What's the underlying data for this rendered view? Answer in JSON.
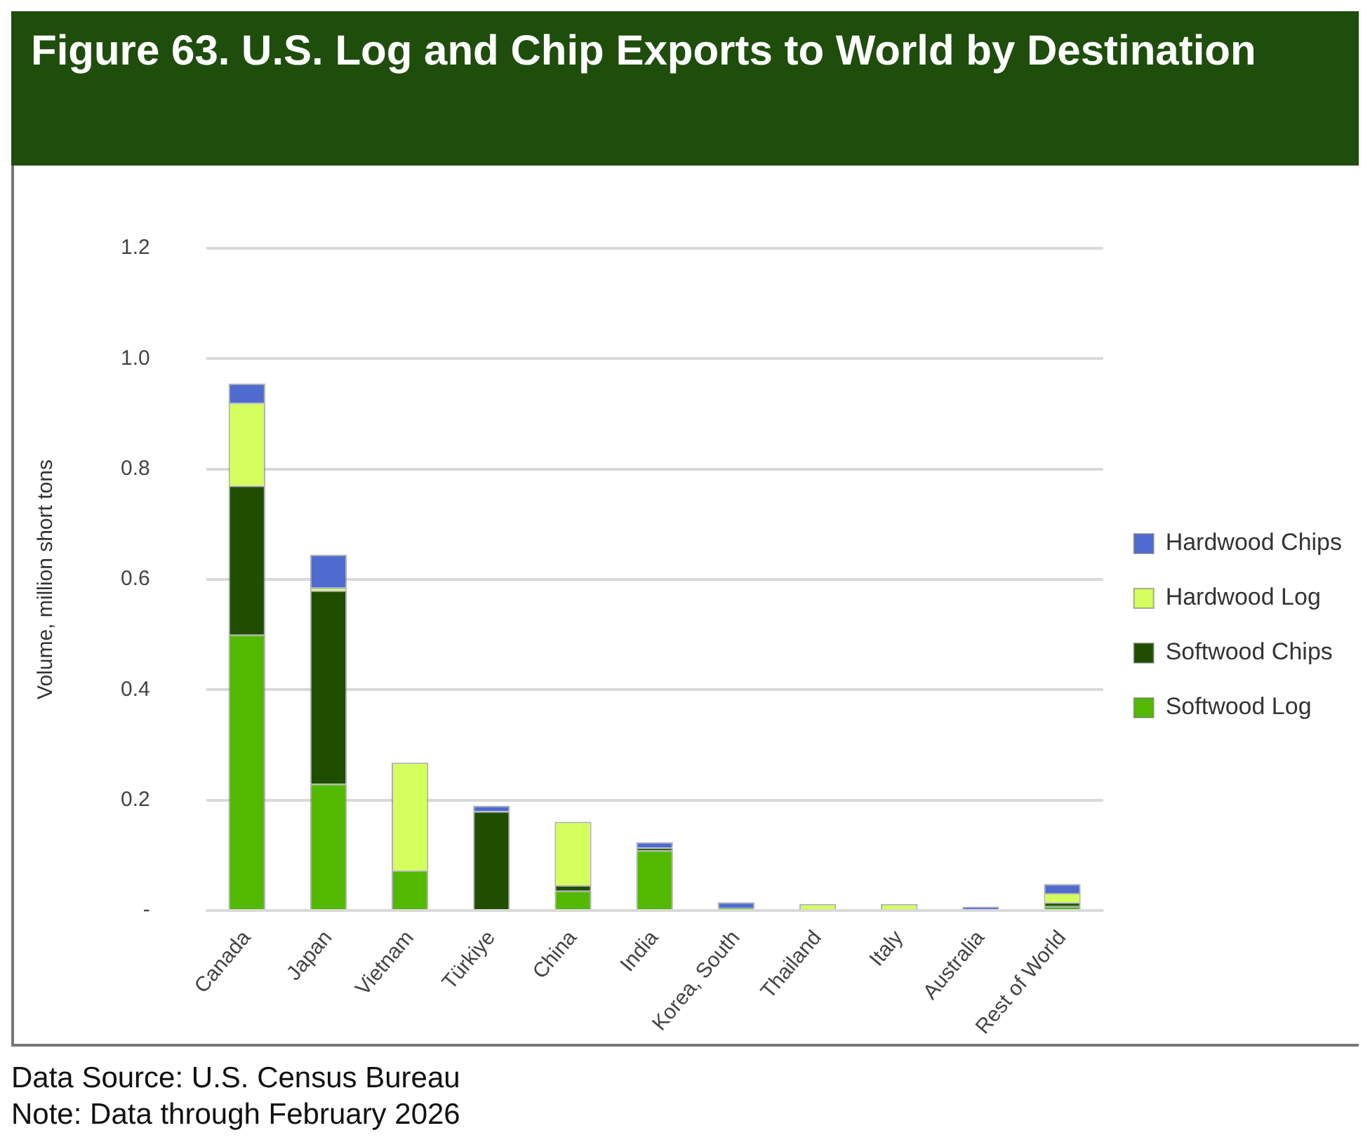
{
  "chart_data": {
    "type": "bar",
    "title": "Figure 63. U.S. Log and Chip Exports to World by Destination",
    "categories": [
      "Canada",
      "Japan",
      "Vietnam",
      "Türkiye",
      "China",
      "India",
      "Korea, South",
      "Thailand",
      "Italy",
      "Australia",
      "Rest of World"
    ],
    "series": [
      {
        "name": "Softwood Log",
        "color": "#52b800",
        "values": [
          0.5,
          0.23,
          0.073,
          0,
          0.036,
          0.109,
          0.005,
          0,
          0,
          0,
          0.008
        ]
      },
      {
        "name": "Softwood Chips",
        "color": "#1f4e00",
        "values": [
          0.27,
          0.35,
          0,
          0.18,
          0.01,
          0.005,
          0,
          0,
          0,
          0,
          0.007
        ]
      },
      {
        "name": "Hardwood Log",
        "color": "#d4ff5c",
        "values": [
          0.15,
          0.005,
          0.195,
          0,
          0.115,
          0,
          0,
          0.012,
          0.012,
          0,
          0.017
        ]
      },
      {
        "name": "Hardwood Chips",
        "color": "#4f6bd0",
        "values": [
          0.035,
          0.06,
          0,
          0.01,
          0,
          0.01,
          0.01,
          0,
          0,
          0.007,
          0.016
        ]
      }
    ],
    "stacked": true,
    "ylabel": "Volume, million short tons",
    "ylim": [
      0,
      1.2
    ],
    "yticks": [
      {
        "value": 0,
        "label": "-"
      },
      {
        "value": 0.2,
        "label": "0.2"
      },
      {
        "value": 0.4,
        "label": "0.4"
      },
      {
        "value": 0.6,
        "label": "0.6"
      },
      {
        "value": 0.8,
        "label": "0.8"
      },
      {
        "value": 1,
        "label": "1.0"
      },
      {
        "value": 1.2,
        "label": "1.2"
      }
    ],
    "grid": "y",
    "legend": "right",
    "annotations": [
      "Data Source: U.S. Census Bureau",
      "Note: Data through February 2026"
    ]
  }
}
